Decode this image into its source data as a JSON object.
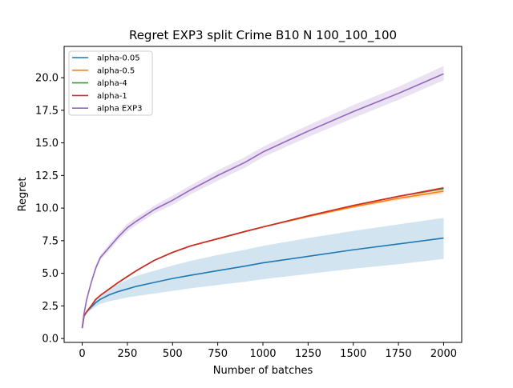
{
  "chart_data": {
    "type": "line",
    "title": "Regret EXP3 split Crime B10 N 100_100_100",
    "xlabel": "Number of batches",
    "ylabel": "Regret",
    "xlim": [
      -100,
      2100
    ],
    "ylim": [
      -0.3,
      22.4
    ],
    "xticks": [
      0,
      250,
      500,
      750,
      1000,
      1250,
      1500,
      1750,
      2000
    ],
    "yticks": [
      0.0,
      2.5,
      5.0,
      7.5,
      10.0,
      12.5,
      15.0,
      17.5,
      20.0
    ],
    "xtick_labels": [
      "0",
      "250",
      "500",
      "750",
      "1000",
      "1250",
      "1500",
      "1750",
      "2000"
    ],
    "ytick_labels": [
      "0.0",
      "2.5",
      "5.0",
      "7.5",
      "10.0",
      "12.5",
      "15.0",
      "17.5",
      "20.0"
    ],
    "grid": false,
    "legend_position": "top-left",
    "x": [
      0,
      10,
      25,
      50,
      75,
      100,
      150,
      200,
      250,
      300,
      400,
      500,
      600,
      750,
      900,
      1000,
      1250,
      1500,
      1750,
      2000
    ],
    "series": [
      {
        "name": "alpha-0.05",
        "color": "#1f77b4",
        "values": [
          0.8,
          1.7,
          2.05,
          2.4,
          2.75,
          3.0,
          3.35,
          3.6,
          3.8,
          4.0,
          4.3,
          4.6,
          4.85,
          5.2,
          5.55,
          5.8,
          6.3,
          6.8,
          7.25,
          7.7
        ],
        "lower": [
          0.75,
          1.6,
          1.9,
          2.2,
          2.45,
          2.65,
          2.85,
          3.0,
          3.15,
          3.25,
          3.45,
          3.65,
          3.85,
          4.1,
          4.35,
          4.55,
          4.95,
          5.35,
          5.7,
          6.1
        ],
        "upper": [
          0.85,
          1.8,
          2.2,
          2.6,
          3.0,
          3.3,
          3.8,
          4.2,
          4.5,
          4.8,
          5.2,
          5.6,
          5.95,
          6.4,
          6.8,
          7.1,
          7.7,
          8.25,
          8.75,
          9.25
        ]
      },
      {
        "name": "alpha-0.5",
        "color": "#ff7f0e",
        "values": [
          0.8,
          1.75,
          2.05,
          2.5,
          3.0,
          3.3,
          3.8,
          4.3,
          4.75,
          5.2,
          6.0,
          6.6,
          7.1,
          7.65,
          8.2,
          8.55,
          9.35,
          10.1,
          10.75,
          11.3
        ],
        "lower": [
          0.78,
          1.72,
          2.0,
          2.45,
          2.95,
          3.25,
          3.75,
          4.25,
          4.7,
          5.15,
          5.95,
          6.55,
          7.05,
          7.6,
          8.15,
          8.5,
          9.3,
          10.0,
          10.6,
          11.1
        ],
        "upper": [
          0.82,
          1.78,
          2.1,
          2.55,
          3.05,
          3.35,
          3.85,
          4.35,
          4.8,
          5.25,
          6.05,
          6.65,
          7.15,
          7.7,
          8.25,
          8.6,
          9.4,
          10.2,
          10.9,
          11.5
        ]
      },
      {
        "name": "alpha-4",
        "color": "#2ca02c",
        "values": [
          0.8,
          1.75,
          2.05,
          2.5,
          3.0,
          3.3,
          3.8,
          4.3,
          4.75,
          5.2,
          6.0,
          6.6,
          7.1,
          7.65,
          8.2,
          8.55,
          9.4,
          10.2,
          10.9,
          11.5
        ],
        "lower": [
          0.78,
          1.72,
          2.0,
          2.45,
          2.95,
          3.25,
          3.75,
          4.25,
          4.7,
          5.15,
          5.95,
          6.55,
          7.05,
          7.6,
          8.15,
          8.5,
          9.35,
          10.15,
          10.85,
          11.4
        ],
        "upper": [
          0.82,
          1.78,
          2.1,
          2.55,
          3.05,
          3.35,
          3.85,
          4.35,
          4.8,
          5.25,
          6.05,
          6.65,
          7.15,
          7.7,
          8.25,
          8.6,
          9.45,
          10.25,
          10.95,
          11.6
        ]
      },
      {
        "name": "alpha-1",
        "color": "#d62728",
        "values": [
          0.8,
          1.75,
          2.05,
          2.5,
          3.0,
          3.3,
          3.8,
          4.3,
          4.75,
          5.2,
          6.0,
          6.6,
          7.1,
          7.65,
          8.2,
          8.55,
          9.4,
          10.2,
          10.9,
          11.55
        ],
        "lower": [
          0.78,
          1.72,
          2.0,
          2.45,
          2.95,
          3.25,
          3.75,
          4.25,
          4.7,
          5.15,
          5.95,
          6.55,
          7.05,
          7.6,
          8.15,
          8.5,
          9.35,
          10.15,
          10.85,
          11.45
        ],
        "upper": [
          0.82,
          1.78,
          2.1,
          2.55,
          3.05,
          3.35,
          3.85,
          4.35,
          4.8,
          5.25,
          6.05,
          6.65,
          7.15,
          7.7,
          8.25,
          8.6,
          9.45,
          10.25,
          10.95,
          11.65
        ]
      },
      {
        "name": "alpha EXP3",
        "color": "#9467bd",
        "values": [
          0.8,
          1.9,
          3.0,
          4.3,
          5.4,
          6.2,
          7.0,
          7.8,
          8.5,
          9.0,
          9.9,
          10.6,
          11.4,
          12.5,
          13.5,
          14.3,
          15.9,
          17.4,
          18.8,
          20.3
        ],
        "lower": [
          0.7,
          1.8,
          2.85,
          4.15,
          5.2,
          6.0,
          6.75,
          7.55,
          8.2,
          8.7,
          9.6,
          10.25,
          11.05,
          12.1,
          13.1,
          13.9,
          15.45,
          16.9,
          18.3,
          19.8
        ],
        "upper": [
          0.9,
          2.0,
          3.15,
          4.45,
          5.6,
          6.4,
          7.25,
          8.05,
          8.8,
          9.3,
          10.2,
          10.95,
          11.75,
          12.9,
          13.9,
          14.7,
          16.35,
          17.9,
          19.3,
          20.9
        ]
      }
    ]
  }
}
